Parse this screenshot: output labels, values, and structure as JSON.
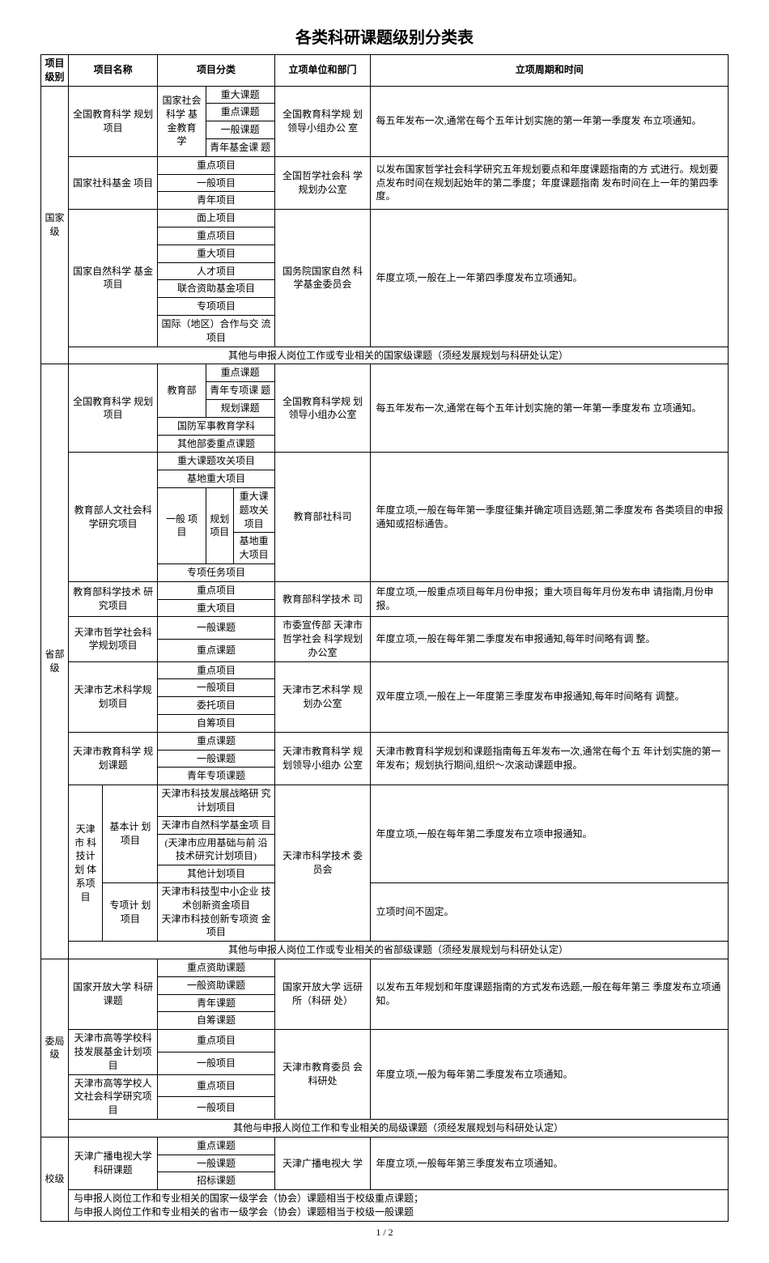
{
  "title": "各类科研课题级别分类表",
  "footer": "1 / 2",
  "headers": {
    "level": "项目\n级别",
    "name": "项目名称",
    "classification": "项目分类",
    "dept": "立项单位和部门",
    "period": "立项周期和时间"
  },
  "national": {
    "label": "国家\n级",
    "row1": {
      "name": "全国教育科学\n规划项目",
      "sub1": "国家社会\n科学\n基金教育\n学",
      "items": [
        "重大课题",
        "重点课题",
        "一般课题",
        "青年基金课\n题"
      ],
      "dept": "全国教育科学规\n划领导小组办公\n室",
      "period": "每五年发布一次,通常在每个五年计划实施的第一年第一季度发\n布立项通知。"
    },
    "row2": {
      "name": "国家社科基金\n项目",
      "items": [
        "重点项目",
        "一般项目",
        "青年项目"
      ],
      "dept": "全国哲学社会科\n学规划办公室",
      "period": "以发布国家哲学社会科学研究五年规划要点和年度课题指南的方\n式进行。规划要点发布时间在规划起始年的第二季度；年度课题指南\n发布时间在上一年的第四季度。"
    },
    "row3": {
      "name": "国家自然科学\n基金项目",
      "items": [
        "面上项目",
        "重点项目",
        "重大项目",
        "人才项目",
        "联合资助基金项目",
        "专项项目",
        "国际（地区）合作与交\n流项目"
      ],
      "dept": "国务院国家自然\n科学基金委员会",
      "period": "年度立项,一般在上一年第四季度发布立项通知。"
    },
    "note": "其他与申报人岗位工作或专业相关的国家级课题（须经发展规划与科研处认定）"
  },
  "provincial": {
    "label": "省部\n级",
    "row1": {
      "name": "全国教育科学\n规划项目",
      "sub1": "教育部",
      "items1": [
        "重点课题",
        "青年专项课\n题",
        "规划课题"
      ],
      "items2": [
        "国防军事教育学科",
        "其他部委重点课题"
      ],
      "dept": "全国教育科学规\n划\n领导小组办公室",
      "period": "每五年发布一次,通常在每个五年计划实施的第一年第一季度发布\n立项通知。"
    },
    "row2": {
      "name": "教育部人文社会科\n学研究项目",
      "items_top": [
        "重大课题攻关项目",
        "基地重大项目"
      ],
      "sub1": "一般\n项目",
      "sub2": "规划\n项目",
      "items_mid": [
        "重大课\n题攻关\n项目",
        "基地重\n大项目"
      ],
      "items_bot": [
        "专项任务项目"
      ],
      "dept": "教育部社科司",
      "period": "年度立项,一般在每年第一季度征集并确定项目选题,第二季度发布\n各类项目的申报通知或招标通告。"
    },
    "row3": {
      "name": "教育部科学技术\n研究项目",
      "items": [
        "重点项目",
        "重大项目"
      ],
      "dept": "教育部科学技术\n司",
      "period": "年度立项,一般重点项目每年月份申报；重大项目每年月份发布申\n请指南,月份申报。"
    },
    "row4": {
      "name": "天津市哲学社会科\n学规划项目",
      "items": [
        "一般课题",
        "重点课题"
      ],
      "dept": "市委宣传部\n天津市哲学社会\n科学规划办公室",
      "period": "年度立项,一般在每年第二季度发布申报通知,每年时间略有调\n整。"
    },
    "row5": {
      "name": "天津市艺术科学规\n划项目",
      "items": [
        "重点项目",
        "一般项目",
        "委托项目",
        "自筹项目"
      ],
      "dept": "天津市艺术科学\n规划办公室",
      "period": "双年度立项,一般在上一年度第三季度发布申报通知,每年时间略有\n调整。"
    },
    "row6": {
      "name": "天津市教育科学\n规划课题",
      "items": [
        "重点课题",
        "一般课题",
        "青年专项课题"
      ],
      "dept": "天津市教育科学\n规划领导小组办\n公室",
      "period": "天津市教育科学规划和课题指南每五年发布一次,通常在每个五\n年计划实施的第一年发布；规划执行期间,组织～次滚动课题申报。"
    },
    "row7": {
      "name1": "天津市\n科技计\n划\n体系项\n目",
      "sub_a": "基本计\n划项目",
      "items_a": [
        "天津市科技发展战略研\n究计划项目",
        "天津市自然科学基金项\n目",
        "(天津市应用基础与前\n沿技术研究计划项目)",
        "其他计划项目"
      ],
      "sub_b": "专项计\n划项目",
      "items_b": [
        "天津市科技型中小企业\n技术创新资金项目",
        "天津市科技创新专项资\n金项目"
      ],
      "dept": "天津市科学技术\n委员会",
      "period_a": "年度立项,一般在每年第二季度发布立项申报通知。",
      "period_b": "立项时间不固定。"
    },
    "note": "其他与申报人岗位工作或专业相关的省部级课题（须经发展规划与科研处认定）"
  },
  "bureau": {
    "label": "委局\n级",
    "row1": {
      "name": "国家开放大学\n科研课题",
      "items": [
        "重点资助课题",
        "一般资助课题",
        "青年课题",
        "自筹课题"
      ],
      "dept": "国家开放大学\n远研所（科研\n处）",
      "period": "以发布五年规划和年度课题指南的方式发布选题,一般在每年第三\n季度发布立项通知。"
    },
    "row2": {
      "name": "天津市高等学校科\n技发展基金计划项\n目",
      "items": [
        "重点项目",
        "一般项目"
      ],
      "dept": "天津市教育委员\n会科研处",
      "period": "年度立项,一般为每年第二季度发布立项通知。"
    },
    "row3": {
      "name": "天津市高等学校人\n文社会科学研究项\n目",
      "items": [
        "重点项目",
        "一般项目"
      ]
    },
    "note": "其他与申报人岗位工作和专业相关的局级课题（须经发展规划与科研处认定）"
  },
  "school": {
    "label": "校级",
    "row1": {
      "name": "天津广播电视大学\n科研课题",
      "items": [
        "重点课题",
        "一般课题",
        "招标课题"
      ],
      "dept": "天津广播电视大\n学",
      "period": "年度立项,一般每年第三季度发布立项通知。"
    },
    "note1": "与申报人岗位工作和专业相关的国家一级学会（协会）课题相当于校级重点课题；",
    "note2": "与申报人岗位工作和专业相关的省市一级学会（协会）课题相当于校级一般课题"
  }
}
